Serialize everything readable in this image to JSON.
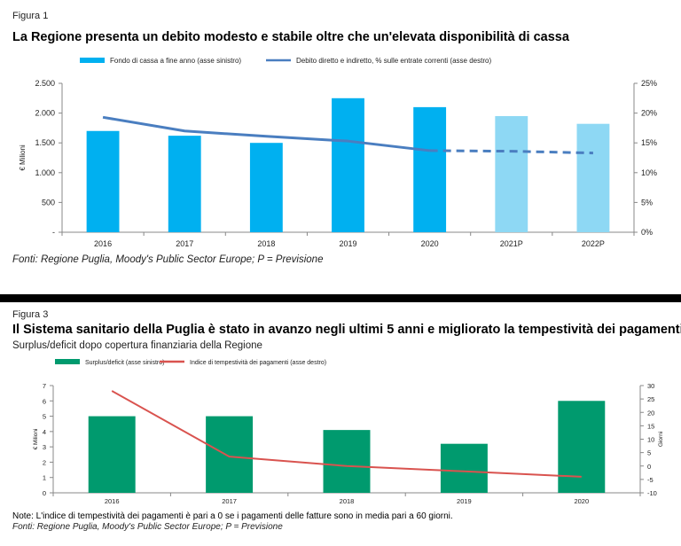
{
  "figure1": {
    "label": "Figura 1",
    "title": "La Regione presenta un debito modesto e stabile oltre che un'elevata disponibilità di cassa",
    "source": "Fonti: Regione Puglia, Moody's Public Sector Europe; P = Previsione",
    "colors": {
      "bar": "#00B0F0",
      "bar_forecast": "#8ED8F4",
      "line": "#4A7EC0"
    }
  },
  "figure2": {
    "label": "Figura 3",
    "title": "Il Sistema sanitario della Puglia è stato in avanzo negli ultimi 5 anni e migliorato la tempestività dei pagamenti",
    "subtitle": "Surplus/deficit dopo copertura finanziaria della Regione",
    "note": "Note: L'indice di tempestività dei pagamenti è pari a 0 se i pagamenti delle fatture sono in media pari a 60 giorni.",
    "source": "Fonti: Regione Puglia, Moody's Public Sector Europe; P = Previsione",
    "colors": {
      "bar": "#009A6E",
      "line": "#D9534F"
    }
  },
  "chart_data": [
    {
      "type": "bar",
      "categories": [
        "2016",
        "2017",
        "2018",
        "2019",
        "2020",
        "2021P",
        "2022P"
      ],
      "forecast_flags": [
        false,
        false,
        false,
        false,
        false,
        true,
        true
      ],
      "series": [
        {
          "name": "Fondo di cassa a fine anno (asse sinistro)",
          "type": "bar",
          "axis": "left",
          "values": [
            1700,
            1620,
            1500,
            2250,
            2100,
            1950,
            1820
          ]
        },
        {
          "name": "Debito diretto e indiretto, % sulle entrate correnti (asse destro)",
          "type": "line",
          "axis": "right",
          "values": [
            19.3,
            17.0,
            16.1,
            15.3,
            13.7,
            13.6,
            13.3
          ],
          "dashed_from_index": 4
        }
      ],
      "ylabel": "€ Milioni",
      "ylim": [
        0,
        2500
      ],
      "yticks": [
        0,
        500,
        1000,
        1500,
        2000,
        2500
      ],
      "ytick_labels": [
        "-",
        "500",
        "1.000",
        "1.500",
        "2.000",
        "2.500"
      ],
      "y2lim": [
        0,
        25
      ],
      "y2ticks": [
        0,
        5,
        10,
        15,
        20,
        25
      ],
      "y2tick_labels": [
        "0%",
        "5%",
        "10%",
        "15%",
        "20%",
        "25%"
      ],
      "legend": "top",
      "grid": false
    },
    {
      "type": "bar",
      "categories": [
        "2016",
        "2017",
        "2018",
        "2019",
        "2020"
      ],
      "series": [
        {
          "name": "Surplus/deficit (asse sinistro)",
          "type": "bar",
          "axis": "left",
          "values": [
            5.0,
            5.0,
            4.1,
            3.2,
            6.0
          ]
        },
        {
          "name": "Indice di tempestività dei pagamenti (asse destro)",
          "type": "line",
          "axis": "right",
          "values": [
            28,
            3.5,
            0,
            -2,
            -4
          ]
        }
      ],
      "ylabel": "€ Milioni",
      "y2label": "Giorni",
      "ylim": [
        0,
        7
      ],
      "yticks": [
        0,
        1,
        2,
        3,
        4,
        5,
        6,
        7
      ],
      "ytick_labels": [
        "0",
        "1",
        "2",
        "3",
        "4",
        "5",
        "6",
        "7"
      ],
      "y2lim": [
        -10,
        30
      ],
      "y2ticks": [
        -10,
        -5,
        0,
        5,
        10,
        15,
        20,
        25,
        30
      ],
      "y2tick_labels": [
        "-10",
        "-5",
        "0",
        "5",
        "10",
        "15",
        "20",
        "25",
        "30"
      ],
      "legend": "top",
      "grid": false
    }
  ]
}
